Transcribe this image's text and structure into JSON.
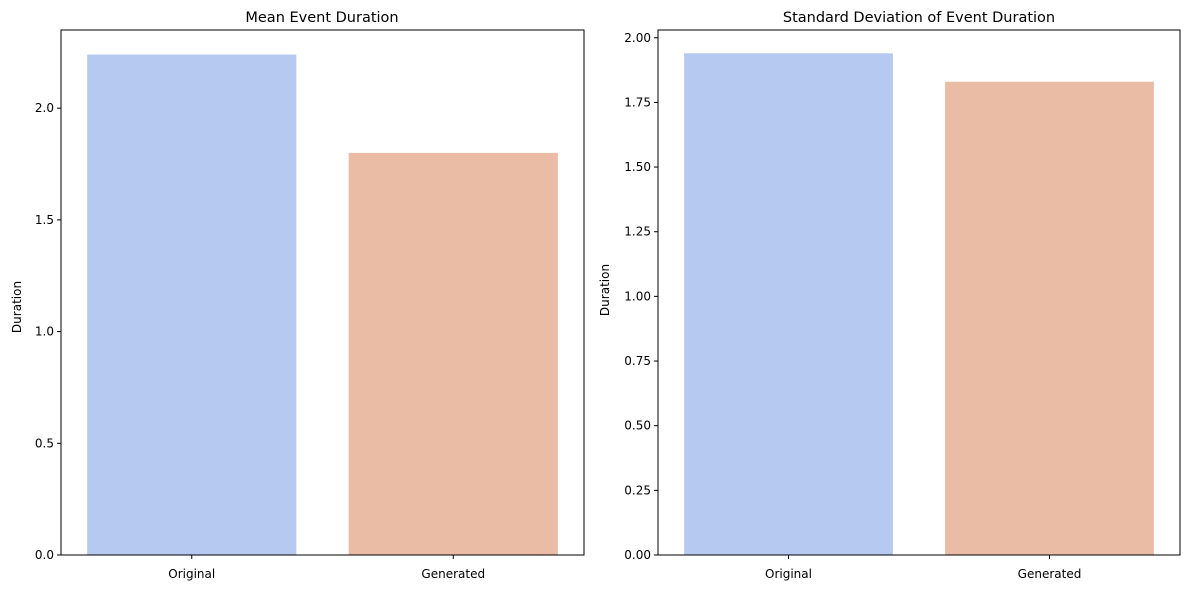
{
  "chart_data": [
    {
      "type": "bar",
      "title": "Mean Event Duration",
      "xlabel": "",
      "ylabel": "Duration",
      "categories": [
        "Original",
        "Generated"
      ],
      "values": [
        2.24,
        1.8
      ],
      "colors": [
        "#b5c9f1",
        "#eabca6"
      ],
      "ylim": [
        0,
        2.35
      ],
      "yticks": [
        0.0,
        0.5,
        1.0,
        1.5,
        2.0
      ],
      "ytick_labels": [
        "0.0",
        "0.5",
        "1.0",
        "1.5",
        "2.0"
      ],
      "grid": false,
      "legend": "none"
    },
    {
      "type": "bar",
      "title": "Standard Deviation of Event Duration",
      "xlabel": "",
      "ylabel": "Duration",
      "categories": [
        "Original",
        "Generated"
      ],
      "values": [
        1.94,
        1.83
      ],
      "colors": [
        "#b5c9f1",
        "#eabca6"
      ],
      "ylim": [
        0,
        2.03
      ],
      "yticks": [
        0.0,
        0.25,
        0.5,
        0.75,
        1.0,
        1.25,
        1.5,
        1.75,
        2.0
      ],
      "ytick_labels": [
        "0.00",
        "0.25",
        "0.50",
        "0.75",
        "1.00",
        "1.25",
        "1.50",
        "1.75",
        "2.00"
      ],
      "grid": false,
      "legend": "none"
    }
  ]
}
